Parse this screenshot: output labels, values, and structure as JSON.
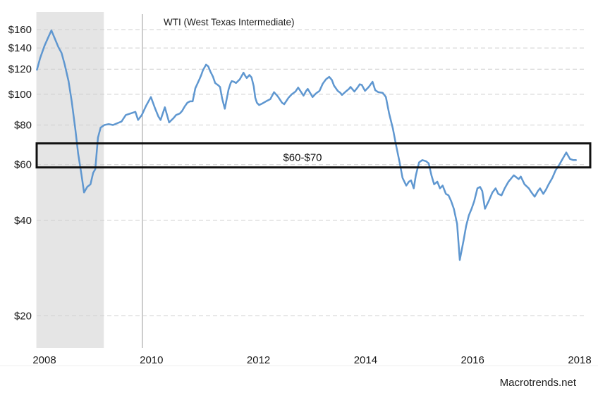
{
  "watermark": "Macrotrends.net",
  "colors": {
    "line": "#5f97d0",
    "grid": "#cfcfcf",
    "recession_band": "#e5e5e5",
    "crosshair": "#999999",
    "annotation_box": "#111111",
    "text": "#1a1a1a",
    "background": "#ffffff"
  },
  "chart_data": {
    "type": "line",
    "title": "WTI (West Texas Intermediate)",
    "y_axis": {
      "scale": "log",
      "tick_prefix": "$",
      "ticks": [
        160,
        140,
        120,
        100,
        80,
        60,
        40,
        20
      ],
      "unit": "USD per barrel"
    },
    "x_axis": {
      "ticks": [
        2008,
        2010,
        2012,
        2014,
        2016,
        2018
      ],
      "range": [
        2007.85,
        2018.3
      ]
    },
    "annotation": {
      "label": "$60-$70",
      "price_low": 60,
      "price_high": 70
    },
    "recession_band": {
      "start": 2007.85,
      "end": 2009.11
    },
    "crosshair_year": 2009.83,
    "legend": "off",
    "grid": "dashed-horizontal",
    "series": [
      {
        "name": "WTI crude oil price",
        "points": [
          [
            2007.86,
            119.5
          ],
          [
            2007.92,
            130
          ],
          [
            2008.0,
            142
          ],
          [
            2008.07,
            151
          ],
          [
            2008.13,
            159
          ],
          [
            2008.2,
            149
          ],
          [
            2008.26,
            141
          ],
          [
            2008.32,
            135
          ],
          [
            2008.38,
            124
          ],
          [
            2008.45,
            110
          ],
          [
            2008.51,
            95
          ],
          [
            2008.58,
            77
          ],
          [
            2008.63,
            65
          ],
          [
            2008.69,
            56
          ],
          [
            2008.74,
            49
          ],
          [
            2008.8,
            51
          ],
          [
            2008.86,
            52
          ],
          [
            2008.91,
            56.5
          ],
          [
            2008.95,
            58
          ],
          [
            2009.0,
            73
          ],
          [
            2009.05,
            78.5
          ],
          [
            2009.12,
            80
          ],
          [
            2009.2,
            80.5
          ],
          [
            2009.28,
            80
          ],
          [
            2009.36,
            81
          ],
          [
            2009.44,
            82
          ],
          [
            2009.52,
            86
          ],
          [
            2009.61,
            87
          ],
          [
            2009.7,
            88
          ],
          [
            2009.75,
            83
          ],
          [
            2009.82,
            86
          ],
          [
            2009.9,
            92
          ],
          [
            2009.99,
            98
          ],
          [
            2010.07,
            90
          ],
          [
            2010.13,
            85
          ],
          [
            2010.17,
            83
          ],
          [
            2010.25,
            91
          ],
          [
            2010.33,
            81.5
          ],
          [
            2010.41,
            84
          ],
          [
            2010.46,
            86
          ],
          [
            2010.53,
            87
          ],
          [
            2010.57,
            88.5
          ],
          [
            2010.62,
            91.5
          ],
          [
            2010.67,
            94
          ],
          [
            2010.72,
            95
          ],
          [
            2010.77,
            95
          ],
          [
            2010.82,
            104.5
          ],
          [
            2010.89,
            111
          ],
          [
            2010.93,
            115
          ],
          [
            2010.96,
            119
          ],
          [
            2011.02,
            124
          ],
          [
            2011.06,
            122.5
          ],
          [
            2011.1,
            118
          ],
          [
            2011.15,
            113.5
          ],
          [
            2011.19,
            108.5
          ],
          [
            2011.24,
            107
          ],
          [
            2011.28,
            105.5
          ],
          [
            2011.32,
            97
          ],
          [
            2011.37,
            90
          ],
          [
            2011.44,
            103.5
          ],
          [
            2011.48,
            108.5
          ],
          [
            2011.5,
            110
          ],
          [
            2011.54,
            109.5
          ],
          [
            2011.58,
            108.5
          ],
          [
            2011.65,
            111.5
          ],
          [
            2011.72,
            117
          ],
          [
            2011.75,
            114.5
          ],
          [
            2011.78,
            112.5
          ],
          [
            2011.83,
            115
          ],
          [
            2011.87,
            113
          ],
          [
            2011.91,
            106
          ],
          [
            2011.94,
            97.5
          ],
          [
            2011.97,
            94
          ],
          [
            2012.01,
            92.5
          ],
          [
            2012.07,
            93.5
          ],
          [
            2012.14,
            95
          ],
          [
            2012.22,
            96.5
          ],
          [
            2012.29,
            101.5
          ],
          [
            2012.36,
            98.5
          ],
          [
            2012.44,
            94
          ],
          [
            2012.48,
            93
          ],
          [
            2012.56,
            97.5
          ],
          [
            2012.62,
            100
          ],
          [
            2012.69,
            102
          ],
          [
            2012.74,
            105
          ],
          [
            2012.84,
            99
          ],
          [
            2012.89,
            102.5
          ],
          [
            2012.92,
            104
          ],
          [
            2013.01,
            98
          ],
          [
            2013.07,
            100.5
          ],
          [
            2013.14,
            102.5
          ],
          [
            2013.2,
            108
          ],
          [
            2013.26,
            111.5
          ],
          [
            2013.32,
            113.5
          ],
          [
            2013.37,
            111
          ],
          [
            2013.41,
            106.5
          ],
          [
            2013.48,
            102.5
          ],
          [
            2013.53,
            101
          ],
          [
            2013.56,
            99.5
          ],
          [
            2013.63,
            102
          ],
          [
            2013.69,
            104
          ],
          [
            2013.72,
            105.5
          ],
          [
            2013.79,
            102
          ],
          [
            2013.85,
            105
          ],
          [
            2013.89,
            107.5
          ],
          [
            2013.93,
            107
          ],
          [
            2013.99,
            102.5
          ],
          [
            2014.06,
            105.5
          ],
          [
            2014.13,
            109.5
          ],
          [
            2014.18,
            103
          ],
          [
            2014.24,
            101.5
          ],
          [
            2014.32,
            101
          ],
          [
            2014.38,
            98
          ],
          [
            2014.44,
            87
          ],
          [
            2014.51,
            78
          ],
          [
            2014.57,
            69
          ],
          [
            2014.64,
            60.5
          ],
          [
            2014.69,
            54.5
          ],
          [
            2014.76,
            51.5
          ],
          [
            2014.81,
            53
          ],
          [
            2014.85,
            53.5
          ],
          [
            2014.9,
            50.5
          ],
          [
            2014.94,
            55.5
          ],
          [
            2015.0,
            61
          ],
          [
            2015.06,
            62
          ],
          [
            2015.13,
            61.5
          ],
          [
            2015.18,
            60.5
          ],
          [
            2015.23,
            55.5
          ],
          [
            2015.28,
            52
          ],
          [
            2015.34,
            53
          ],
          [
            2015.39,
            50.5
          ],
          [
            2015.44,
            51.5
          ],
          [
            2015.5,
            48.5
          ],
          [
            2015.55,
            48
          ],
          [
            2015.6,
            46
          ],
          [
            2015.65,
            43.5
          ],
          [
            2015.71,
            39
          ],
          [
            2015.76,
            30
          ],
          [
            2015.83,
            34.5
          ],
          [
            2015.88,
            38.5
          ],
          [
            2015.93,
            41.5
          ],
          [
            2015.98,
            43.5
          ],
          [
            2016.03,
            46
          ],
          [
            2016.09,
            50.5
          ],
          [
            2016.14,
            51
          ],
          [
            2016.18,
            49.5
          ],
          [
            2016.23,
            43.5
          ],
          [
            2016.3,
            46
          ],
          [
            2016.37,
            49
          ],
          [
            2016.43,
            50.5
          ],
          [
            2016.48,
            48.5
          ],
          [
            2016.54,
            48
          ],
          [
            2016.6,
            50.5
          ],
          [
            2016.67,
            53
          ],
          [
            2016.73,
            54.5
          ],
          [
            2016.77,
            55.5
          ],
          [
            2016.83,
            54.5
          ],
          [
            2016.86,
            54
          ],
          [
            2016.9,
            55
          ],
          [
            2016.97,
            52
          ],
          [
            2017.05,
            50.5
          ],
          [
            2017.1,
            49
          ],
          [
            2017.16,
            47.5
          ],
          [
            2017.22,
            49.5
          ],
          [
            2017.26,
            50.5
          ],
          [
            2017.32,
            48.5
          ],
          [
            2017.37,
            50
          ],
          [
            2017.42,
            52
          ],
          [
            2017.49,
            54.5
          ],
          [
            2017.55,
            57.5
          ],
          [
            2017.62,
            60
          ],
          [
            2017.68,
            62.5
          ],
          [
            2017.75,
            65.5
          ],
          [
            2017.82,
            62.5
          ],
          [
            2017.88,
            62
          ],
          [
            2017.93,
            62
          ]
        ]
      }
    ]
  }
}
